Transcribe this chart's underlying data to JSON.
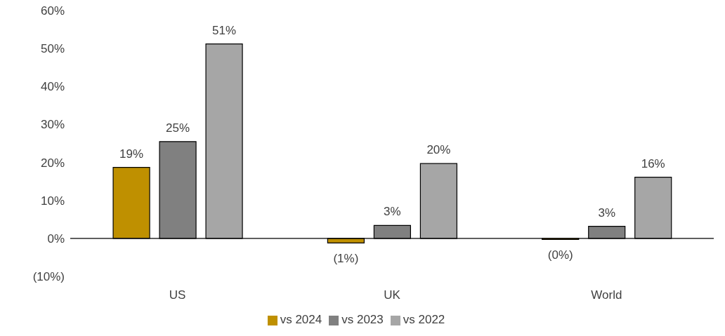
{
  "chart_data": {
    "type": "bar",
    "categories": [
      "US",
      "UK",
      "World"
    ],
    "series": [
      {
        "name": "vs 2024",
        "color": "#bf9000",
        "values": [
          18.7,
          -1.2,
          -0.3
        ],
        "value_labels": [
          "19%",
          "(1%)",
          "(0%)"
        ]
      },
      {
        "name": "vs 2023",
        "color": "#808080",
        "values": [
          25.5,
          3.4,
          3.2
        ],
        "value_labels": [
          "25%",
          "3%",
          "3%"
        ]
      },
      {
        "name": "vs 2022",
        "color": "#a6a6a6",
        "values": [
          51.2,
          19.7,
          16.1
        ],
        "value_labels": [
          "51%",
          "20%",
          "16%"
        ]
      }
    ],
    "ylim": [
      -10,
      60
    ],
    "yticks": [
      {
        "value": -10,
        "label": "(10%)"
      },
      {
        "value": 0,
        "label": "0%"
      },
      {
        "value": 10,
        "label": "10%"
      },
      {
        "value": 20,
        "label": "20%"
      },
      {
        "value": 30,
        "label": "30%"
      },
      {
        "value": 40,
        "label": "40%"
      },
      {
        "value": 50,
        "label": "50%"
      },
      {
        "value": 60,
        "label": "60%"
      }
    ],
    "legend": "bottom"
  }
}
